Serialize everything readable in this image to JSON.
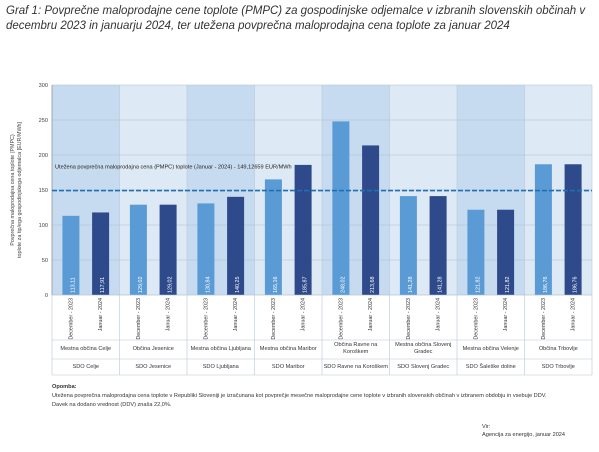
{
  "chart_data": {
    "type": "bar",
    "title": "Graf 1: Povprečne maloprodajne cene toplote (PMPC) za gospodinjske odjemalce v izbranih slovenskih občinah v decembru 2023 in januarju 2024, ter utežena povprečna maloprodajna cena toplote za januar 2024",
    "y_label": [
      "Povprečna maloprodajna cena toplote (PMPC)",
      "toplote za tip/ega gospodinjskega odjemalca [EUR/MWh]"
    ],
    "categories": [
      "Mestna občina Celje",
      "Občina Jesenice",
      "Mestna občina Ljubljana",
      "Mestna občina Maribor",
      "Občina Ravne na Koroškem",
      "Mestna občina Slovenj Gradec",
      "Mestna občina Velenje",
      "Občina Trbovlje"
    ],
    "distributors": [
      "SDO Celje",
      "SDO Jesenice",
      "SDO Ljubljana",
      "SDO Maribor",
      "SDO Ravne na Koroškem",
      "SDO Slovenj Gradec",
      "SDO Šaleške doline",
      "SDO Trbovlje"
    ],
    "series": [
      {
        "name": "December - 2023",
        "color": "#5b9bd5",
        "values": [
          113.11,
          129.02,
          130.84,
          165.16,
          248.02,
          141.28,
          121.82,
          186.76
        ],
        "value_labels": [
          "113,11",
          "129,02",
          "130,84",
          "165,16",
          "248,02",
          "141,28",
          "121,82",
          "186,76"
        ]
      },
      {
        "name": "Januar - 2024",
        "color": "#2e4a8b",
        "values": [
          117.91,
          129.02,
          140.25,
          185.87,
          213.68,
          141.28,
          121.82,
          186.76
        ],
        "value_labels": [
          "117,91",
          "129,02",
          "140,25",
          "185,87",
          "213,68",
          "141,28",
          "121,82",
          "186,76"
        ]
      }
    ],
    "reference_line": {
      "value": 149.12659,
      "label": "Utežena povprečna maloprodajna cena (PMPC) toplote (Januar - 2024) - 149,12659  EUR/MWh",
      "color": "#1f6fb5"
    },
    "ylim": [
      0,
      300
    ],
    "yticks": [
      0,
      50,
      100,
      150,
      200,
      250,
      300
    ],
    "grid": true
  },
  "notes": {
    "heading": "Opomba:",
    "lines": [
      "Utežena povprečna maloprodajna cena toplote v Republiki Sloveniji je izračunana kot povprečje mesečne maloprodajne cene toplote v izbranih slovenskih občinah v izbranem obdobju in vsebuje DDV.",
      "Davek na dodano vrednost (DDV) znaša 22,0%."
    ]
  },
  "source": {
    "heading": "Vir:",
    "text": "Agencija za energijo, januar 2024"
  }
}
